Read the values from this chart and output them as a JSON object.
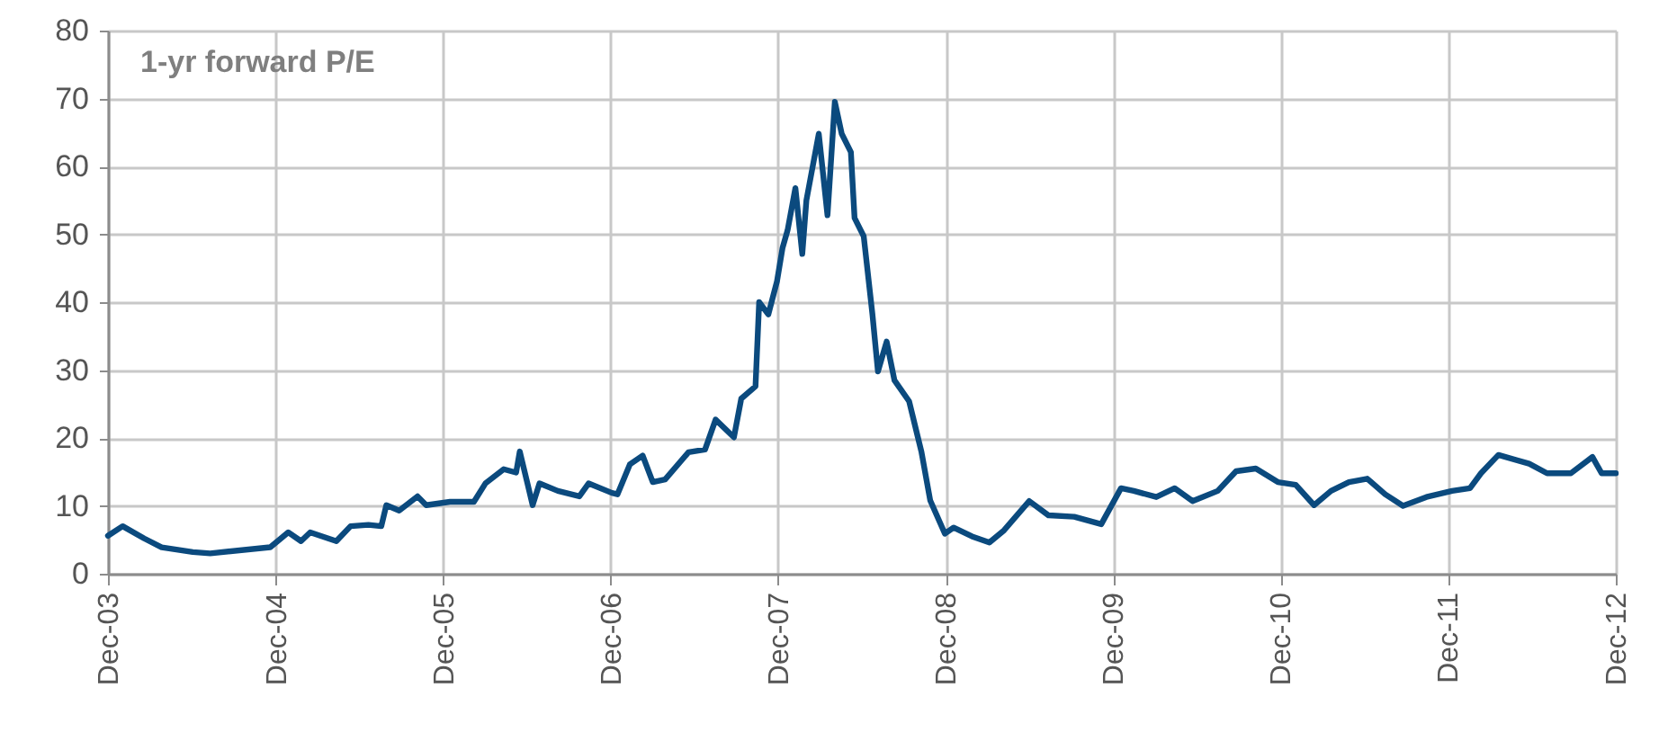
{
  "chart_data": {
    "type": "line",
    "title": "1-yr forward P/E",
    "x": [
      "2003-12-01",
      "2004-01-02",
      "2004-02-18",
      "2004-03-27",
      "2004-06-03",
      "2004-07-11",
      "2004-11-19",
      "2004-12-28",
      "2005-01-25",
      "2005-02-14",
      "2005-04-12",
      "2005-05-13",
      "2005-06-21",
      "2005-07-19",
      "2005-07-30",
      "2005-08-27",
      "2005-10-06",
      "2005-10-25",
      "2005-12-16",
      "2006-02-06",
      "2006-03-03",
      "2006-04-12",
      "2006-05-09",
      "2006-05-17",
      "2006-06-02",
      "2006-06-14",
      "2006-06-29",
      "2006-08-08",
      "2006-09-24",
      "2006-10-14",
      "2006-12-04",
      "2006-12-16",
      "2007-01-12",
      "2007-02-09",
      "2007-03-03",
      "2007-03-30",
      "2007-05-20",
      "2007-06-25",
      "2007-07-18",
      "2007-08-27",
      "2007-09-12",
      "2007-10-13",
      "2007-10-21",
      "2007-11-10",
      "2007-11-29",
      "2007-12-11",
      "2007-12-22",
      "2008-01-08",
      "2008-01-23",
      "2008-02-01",
      "2008-02-28",
      "2008-03-18",
      "2008-04-03",
      "2008-04-18",
      "2008-05-08",
      "2008-05-16",
      "2008-06-05",
      "2008-06-24",
      "2008-07-06",
      "2008-07-25",
      "2008-08-11",
      "2008-09-12",
      "2008-10-09",
      "2008-10-28",
      "2008-11-29",
      "2008-12-18",
      "2009-01-27",
      "2009-03-06",
      "2009-04-07",
      "2009-06-01",
      "2009-07-13",
      "2009-09-07",
      "2009-11-05",
      "2009-12-18",
      "2010-01-15",
      "2010-03-05",
      "2010-04-14",
      "2010-05-23",
      "2010-07-17",
      "2010-08-26",
      "2010-10-08",
      "2010-11-25",
      "2011-01-03",
      "2011-02-12",
      "2011-03-21",
      "2011-04-29",
      "2011-06-08",
      "2011-07-17",
      "2011-08-25",
      "2011-10-15",
      "2011-12-10",
      "2012-01-18",
      "2012-02-11",
      "2012-03-20",
      "2012-05-26",
      "2012-07-04",
      "2012-08-25",
      "2012-10-11",
      "2012-10-31",
      "2012-12-01"
    ],
    "series": [
      {
        "color": "#0b4a7e",
        "values": [
          5.6,
          7.0,
          5.2,
          3.9,
          3.2,
          3.0,
          3.9,
          6.1,
          4.8,
          6.1,
          4.8,
          7.0,
          7.2,
          7.0,
          10.1,
          9.3,
          11.4,
          10.1,
          10.6,
          10.6,
          13.3,
          15.4,
          14.9,
          18.0,
          13.5,
          10.1,
          13.3,
          12.2,
          11.4,
          13.3,
          11.9,
          11.7,
          16.1,
          17.4,
          13.5,
          13.9,
          17.9,
          18.3,
          22.7,
          20.1,
          25.8,
          27.6,
          40.0,
          38.2,
          43.1,
          48.0,
          50.6,
          56.8,
          47.1,
          55.0,
          64.8,
          52.8,
          69.5,
          64.8,
          62.1,
          52.4,
          49.7,
          38.2,
          29.8,
          34.2,
          28.5,
          25.4,
          17.9,
          10.8,
          5.9,
          6.8,
          5.5,
          4.6,
          6.4,
          10.7,
          8.6,
          8.4,
          7.3,
          12.6,
          12.2,
          11.3,
          12.6,
          10.7,
          12.2,
          15.1,
          15.5,
          13.5,
          13.1,
          10.1,
          12.2,
          13.5,
          14.0,
          11.7,
          10.0,
          11.3,
          12.2,
          12.6,
          14.8,
          17.5,
          16.2,
          14.8,
          14.8,
          17.2,
          14.8,
          14.8
        ]
      }
    ],
    "xlim": [
      "2003-12-01",
      "2012-12-01"
    ],
    "xticks": [
      {
        "value": "2003-12-01",
        "label": "Dec-03"
      },
      {
        "value": "2004-12-01",
        "label": "Dec-04"
      },
      {
        "value": "2005-12-01",
        "label": "Dec-05"
      },
      {
        "value": "2006-12-01",
        "label": "Dec-06"
      },
      {
        "value": "2007-12-01",
        "label": "Dec-07"
      },
      {
        "value": "2008-12-01",
        "label": "Dec-08"
      },
      {
        "value": "2009-12-01",
        "label": "Dec-09"
      },
      {
        "value": "2010-12-01",
        "label": "Dec-10"
      },
      {
        "value": "2011-12-01",
        "label": "Dec-11"
      },
      {
        "value": "2012-12-01",
        "label": "Dec-12"
      }
    ],
    "ylim": [
      0,
      80
    ],
    "yticks": [
      0,
      10,
      20,
      30,
      40,
      50,
      60,
      70,
      80
    ],
    "grid": true,
    "line_style": "solid"
  }
}
